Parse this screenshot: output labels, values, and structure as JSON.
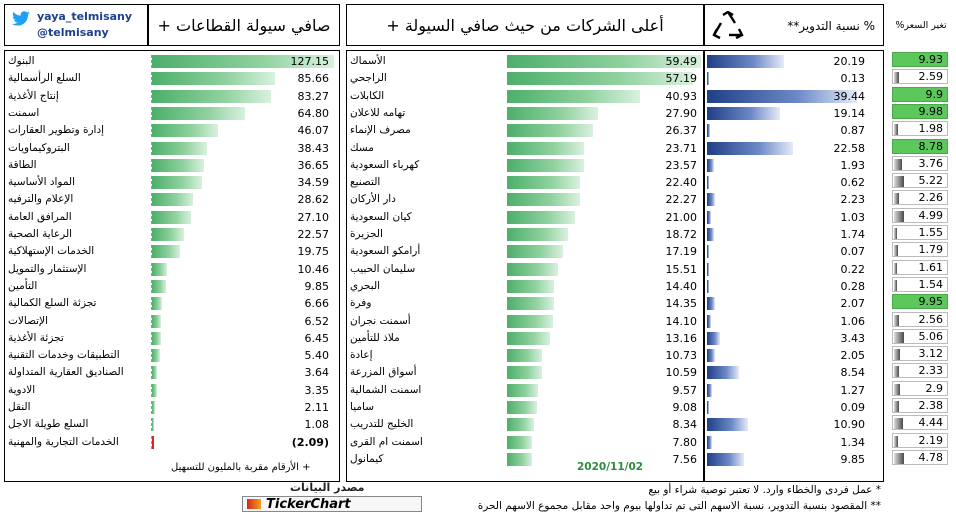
{
  "brand": {
    "handle": "yaya_telmisany",
    "twitter": "@telmisany",
    "twitter_color": "#1da1f2"
  },
  "sectors_panel": {
    "title": "صافي سيولة القطاعات +",
    "note": "+ الأرقام مقربة بالمليون للتسهيل",
    "items": [
      {
        "name": "البنوك",
        "value": "127.15",
        "num": 127.15
      },
      {
        "name": "السلع الرأسمالية",
        "value": "85.66",
        "num": 85.66
      },
      {
        "name": "إنتاج الأغذية",
        "value": "83.27",
        "num": 83.27
      },
      {
        "name": "اسمنت",
        "value": "64.80",
        "num": 64.8
      },
      {
        "name": "إدارة وتطوير العقارات",
        "value": "46.07",
        "num": 46.07
      },
      {
        "name": "البتروكيماويات",
        "value": "38.43",
        "num": 38.43
      },
      {
        "name": "الطاقة",
        "value": "36.65",
        "num": 36.65
      },
      {
        "name": "المواد الأساسية",
        "value": "34.59",
        "num": 34.59
      },
      {
        "name": "الإعلام والترفيه",
        "value": "28.62",
        "num": 28.62
      },
      {
        "name": "المرافق العامة",
        "value": "27.10",
        "num": 27.1
      },
      {
        "name": "الرعاية الصحية",
        "value": "22.57",
        "num": 22.57
      },
      {
        "name": "الخدمات الإستهلاكية",
        "value": "19.75",
        "num": 19.75
      },
      {
        "name": "الإستثمار والتمويل",
        "value": "10.46",
        "num": 10.46
      },
      {
        "name": "التأمين",
        "value": "9.85",
        "num": 9.85
      },
      {
        "name": "تجزئة السلع الكمالية",
        "value": "6.66",
        "num": 6.66
      },
      {
        "name": "الإتصالات",
        "value": "6.52",
        "num": 6.52
      },
      {
        "name": "تجزئة الأغذية",
        "value": "6.45",
        "num": 6.45
      },
      {
        "name": "التطبيقات وخدمات التقنية",
        "value": "5.40",
        "num": 5.4
      },
      {
        "name": "الصناديق العقارية المتداولة",
        "value": "3.64",
        "num": 3.64
      },
      {
        "name": "الادوية",
        "value": "3.35",
        "num": 3.35
      },
      {
        "name": "النقل",
        "value": "2.11",
        "num": 2.11
      },
      {
        "name": "السلع طويلة الاجل",
        "value": "1.08",
        "num": 1.08
      },
      {
        "name": "الخدمات التجارية والمهنية",
        "value": "(2.09)",
        "num": -2.09
      }
    ]
  },
  "companies_panel": {
    "title": "أعلى الشركات من حيث صافي السيولة +",
    "date": "2020/11/02",
    "items": [
      {
        "name": "الأسماك",
        "value": "59.49",
        "num": 59.49
      },
      {
        "name": "الراجحي",
        "value": "57.19",
        "num": 57.19
      },
      {
        "name": "الكابلات",
        "value": "40.93",
        "num": 40.93
      },
      {
        "name": "تهامه للاعلان",
        "value": "27.90",
        "num": 27.9
      },
      {
        "name": "مصرف الإنماء",
        "value": "26.37",
        "num": 26.37
      },
      {
        "name": "مسك",
        "value": "23.71",
        "num": 23.71
      },
      {
        "name": "كهرباء السعودية",
        "value": "23.57",
        "num": 23.57
      },
      {
        "name": "التصنيع",
        "value": "22.40",
        "num": 22.4
      },
      {
        "name": "دار الأركان",
        "value": "22.27",
        "num": 22.27
      },
      {
        "name": "كيان السعودية",
        "value": "21.00",
        "num": 21.0
      },
      {
        "name": "الجزيرة",
        "value": "18.72",
        "num": 18.72
      },
      {
        "name": "أرامكو السعودية",
        "value": "17.19",
        "num": 17.19
      },
      {
        "name": "سليمان الحبيب",
        "value": "15.51",
        "num": 15.51
      },
      {
        "name": "البحري",
        "value": "14.40",
        "num": 14.4
      },
      {
        "name": "وفرة",
        "value": "14.35",
        "num": 14.35
      },
      {
        "name": "أسمنت نجران",
        "value": "14.10",
        "num": 14.1
      },
      {
        "name": "ملاذ للتأمين",
        "value": "13.16",
        "num": 13.16
      },
      {
        "name": "إعادة",
        "value": "10.73",
        "num": 10.73
      },
      {
        "name": "أسواق المزرعة",
        "value": "10.59",
        "num": 10.59
      },
      {
        "name": "اسمنت الشمالية",
        "value": "9.57",
        "num": 9.57
      },
      {
        "name": "ساميا",
        "value": "9.08",
        "num": 9.08
      },
      {
        "name": "الخليج للتدريب",
        "value": "8.34",
        "num": 8.34
      },
      {
        "name": "اسمنت ام القرى",
        "value": "7.80",
        "num": 7.8
      },
      {
        "name": "كيمانول",
        "value": "7.56",
        "num": 7.56
      }
    ]
  },
  "turnover_panel": {
    "title": "% نسبة التدوير**",
    "values": [
      "20.19",
      "0.13",
      "39.44",
      "19.14",
      "0.87",
      "22.58",
      "1.93",
      "0.62",
      "2.23",
      "1.03",
      "1.74",
      "0.07",
      "0.22",
      "0.28",
      "2.07",
      "1.06",
      "3.43",
      "2.05",
      "8.54",
      "1.27",
      "0.09",
      "10.90",
      "1.34",
      "9.85"
    ],
    "nums": [
      20.19,
      0.13,
      39.44,
      19.14,
      0.87,
      22.58,
      1.93,
      0.62,
      2.23,
      1.03,
      1.74,
      0.07,
      0.22,
      0.28,
      2.07,
      1.06,
      3.43,
      2.05,
      8.54,
      1.27,
      0.09,
      10.9,
      1.34,
      9.85
    ]
  },
  "price_panel": {
    "title": "تغير السعر%",
    "values": [
      "9.93",
      "2.59",
      "9.9",
      "9.98",
      "1.98",
      "8.78",
      "3.76",
      "5.22",
      "2.26",
      "4.99",
      "1.55",
      "1.79",
      "1.61",
      "1.54",
      "9.95",
      "2.56",
      "5.06",
      "3.12",
      "2.33",
      "2.9",
      "2.38",
      "4.44",
      "2.19",
      "4.78"
    ],
    "nums": [
      9.93,
      2.59,
      9.9,
      9.98,
      1.98,
      8.78,
      3.76,
      5.22,
      2.26,
      4.99,
      1.55,
      1.79,
      1.61,
      1.54,
      9.95,
      2.56,
      5.06,
      3.12,
      2.33,
      2.9,
      2.38,
      4.44,
      2.19,
      4.78
    ],
    "highlight_color": "#5cc85c"
  },
  "footer": {
    "source_label": "مصدر البيانات",
    "source_name": "TickerChart",
    "disclaimer1": "* عمل فردى والخطاء وارد. لا تعتبر توصية شراء أو بيع",
    "disclaimer2": "** المقصود بنسبة التدوير، نسبة الاسهم التى تم تداولها بيوم واحد مقابل مجموع الاسهم الحرة"
  }
}
